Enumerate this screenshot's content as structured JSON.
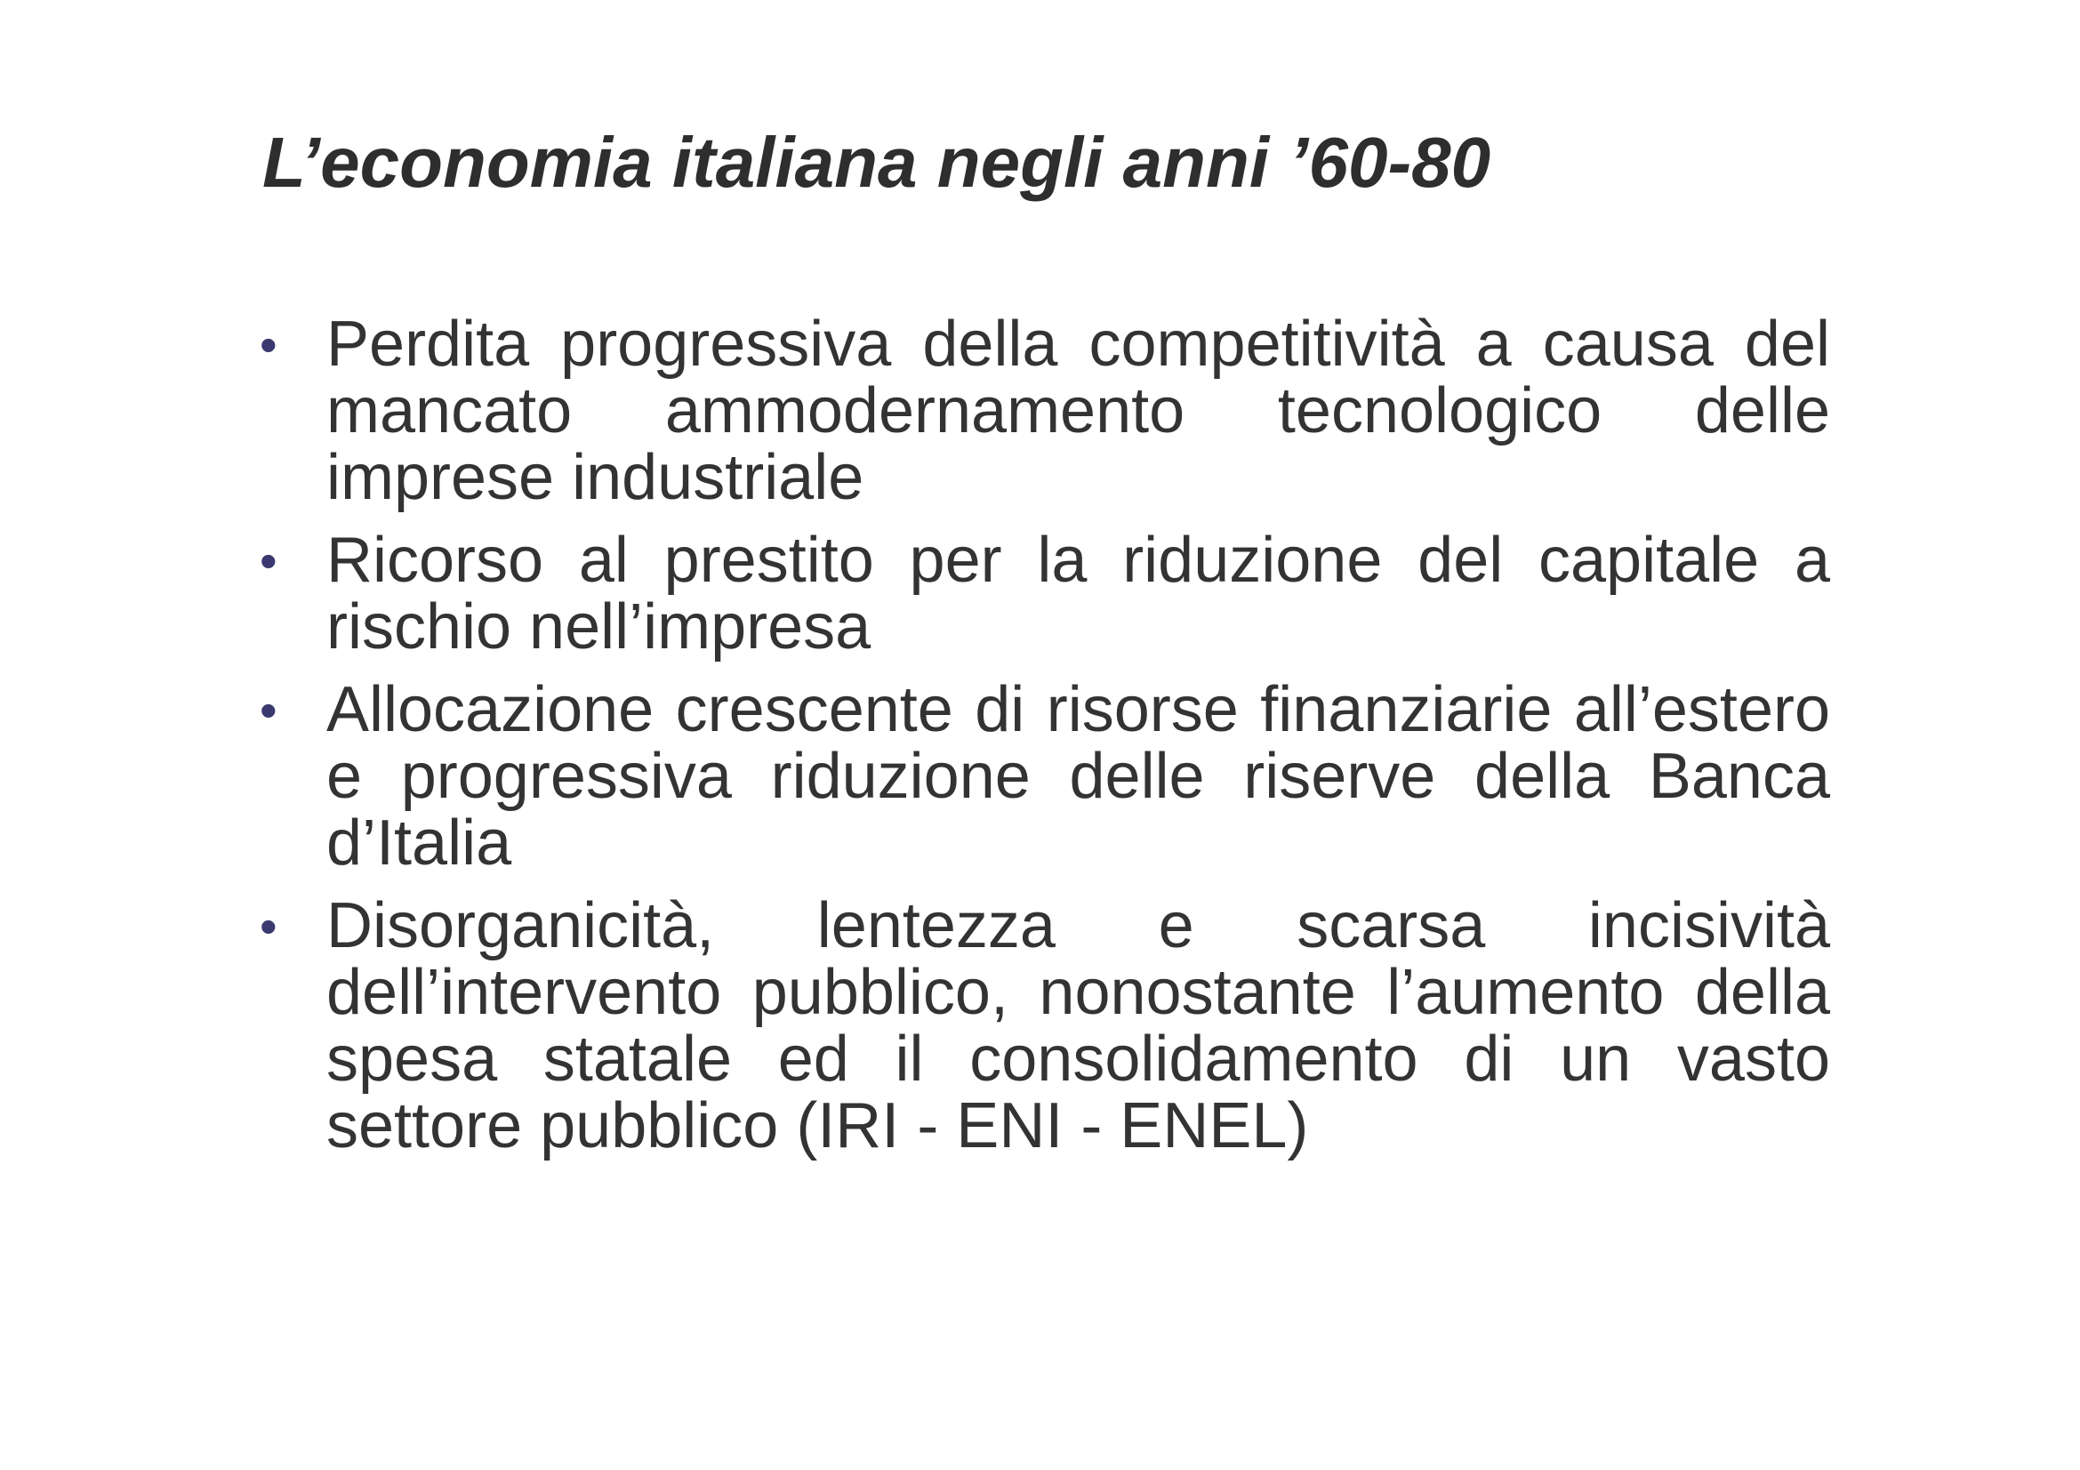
{
  "header": {
    "title": "L’economia italiana negli anni ’60-80"
  },
  "bullets": [
    "Perdita progressiva della competitività a causa del mancato ammodernamento tecnologico delle imprese industriale",
    "Ricorso al prestito per la riduzione del capitale a rischio nell’impresa",
    "Allocazione crescente di risorse finanziarie all’estero e progressiva riduzione delle riserve della Banca d’Italia",
    "Disorganicità, lentezza e scarsa incisività dell’intervento pubblico, nonostante l’aumento della spesa statale ed il consolidamento di un vasto settore pubblico (IRI - ENI - ENEL)"
  ]
}
